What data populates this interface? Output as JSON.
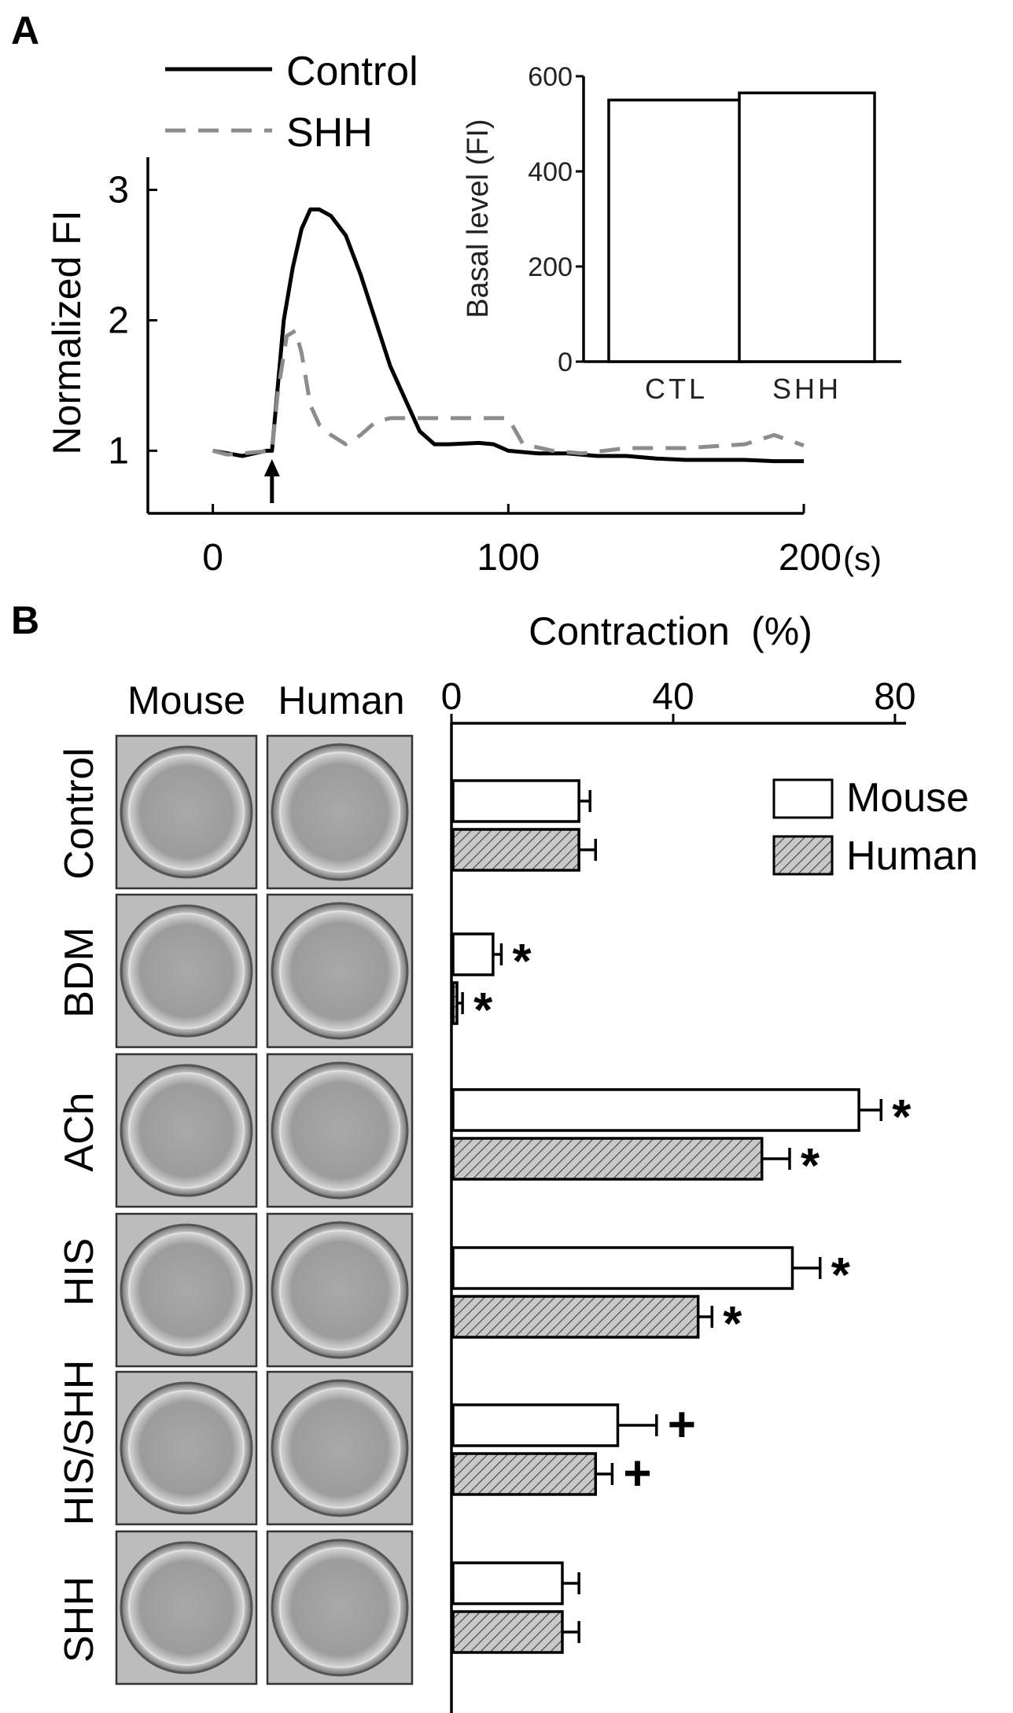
{
  "panel_a": {
    "letter": "A",
    "legend": [
      {
        "label": "Control",
        "color": "#000000",
        "style": "solid"
      },
      {
        "label": "SHH",
        "color": "#8c8c8c",
        "style": "dashed"
      }
    ],
    "marker": "arrow-up-icon"
  },
  "panel_b": {
    "letter": "B",
    "columns": [
      "Mouse",
      "Human"
    ],
    "rows": [
      "Control",
      "BDM",
      "ACh",
      "HIS",
      "HIS/SHH",
      "SHH"
    ],
    "legend": [
      {
        "label": "Mouse",
        "fill": "#ffffff"
      },
      {
        "label": "Human",
        "fill": "hatched-gray"
      }
    ]
  },
  "chart_data": [
    {
      "type": "line",
      "panel": "A",
      "title": "",
      "xlabel": "",
      "x_unit": "(s)",
      "ylabel": "Normalized FI",
      "xlim": [
        -22,
        200
      ],
      "ylim": [
        0.52,
        3.25
      ],
      "xticks": [
        0,
        100,
        200
      ],
      "yticks": [
        1,
        2,
        3
      ],
      "arrow_at_x": 20,
      "series": [
        {
          "name": "Control",
          "color": "#000000",
          "style": "solid",
          "points": [
            [
              0,
              1.0
            ],
            [
              5,
              0.98
            ],
            [
              10,
              0.96
            ],
            [
              14,
              0.98
            ],
            [
              18,
              1.0
            ],
            [
              20,
              1.0
            ],
            [
              22,
              1.5
            ],
            [
              24,
              2.0
            ],
            [
              27,
              2.4
            ],
            [
              30,
              2.7
            ],
            [
              33,
              2.85
            ],
            [
              36,
              2.85
            ],
            [
              40,
              2.8
            ],
            [
              45,
              2.65
            ],
            [
              50,
              2.35
            ],
            [
              55,
              2.0
            ],
            [
              60,
              1.65
            ],
            [
              65,
              1.4
            ],
            [
              70,
              1.15
            ],
            [
              75,
              1.05
            ],
            [
              80,
              1.05
            ],
            [
              90,
              1.06
            ],
            [
              95,
              1.05
            ],
            [
              100,
              1.0
            ],
            [
              110,
              0.98
            ],
            [
              120,
              0.98
            ],
            [
              130,
              0.96
            ],
            [
              140,
              0.96
            ],
            [
              150,
              0.94
            ],
            [
              160,
              0.93
            ],
            [
              170,
              0.93
            ],
            [
              180,
              0.93
            ],
            [
              190,
              0.92
            ],
            [
              200,
              0.92
            ]
          ]
        },
        {
          "name": "SHH",
          "color": "#8c8c8c",
          "style": "dashed",
          "points": [
            [
              0,
              1.0
            ],
            [
              5,
              0.97
            ],
            [
              10,
              0.98
            ],
            [
              15,
              0.99
            ],
            [
              20,
              1.0
            ],
            [
              22,
              1.45
            ],
            [
              25,
              1.88
            ],
            [
              28,
              1.92
            ],
            [
              30,
              1.75
            ],
            [
              33,
              1.35
            ],
            [
              36,
              1.2
            ],
            [
              40,
              1.12
            ],
            [
              45,
              1.05
            ],
            [
              50,
              1.12
            ],
            [
              55,
              1.22
            ],
            [
              60,
              1.25
            ],
            [
              70,
              1.25
            ],
            [
              80,
              1.25
            ],
            [
              90,
              1.25
            ],
            [
              100,
              1.25
            ],
            [
              105,
              1.05
            ],
            [
              115,
              1.0
            ],
            [
              125,
              0.98
            ],
            [
              140,
              1.02
            ],
            [
              160,
              1.02
            ],
            [
              180,
              1.05
            ],
            [
              190,
              1.12
            ],
            [
              200,
              1.04
            ]
          ]
        }
      ]
    },
    {
      "type": "bar",
      "panel": "A-inset",
      "title": "",
      "ylabel": "Basal level (FI)",
      "categories": [
        "CTL",
        "SHH"
      ],
      "values": [
        550,
        565
      ],
      "ylim": [
        0,
        600
      ],
      "yticks": [
        0,
        200,
        400,
        600
      ]
    },
    {
      "type": "bar",
      "panel": "B",
      "orientation": "horizontal",
      "title": "",
      "xlabel": "Contraction",
      "x_unit": "(%)",
      "xlim": [
        0,
        82
      ],
      "xticks": [
        0,
        40,
        80
      ],
      "categories": [
        "Control",
        "BDM",
        "ACh",
        "HIS",
        "HIS/SHH",
        "SHH"
      ],
      "series": [
        {
          "name": "Mouse",
          "values": [
            23,
            7.5,
            73.5,
            61.5,
            30,
            20
          ],
          "errors": [
            2,
            1.5,
            4,
            5,
            7,
            3
          ],
          "marks": [
            "",
            "*",
            "*",
            "*",
            "+",
            ""
          ]
        },
        {
          "name": "Human",
          "values": [
            23,
            1,
            56,
            44.5,
            26,
            20
          ],
          "errors": [
            3,
            1,
            5,
            2.5,
            3,
            3
          ],
          "marks": [
            "",
            "*",
            "*",
            "*",
            "+",
            ""
          ]
        }
      ]
    }
  ]
}
